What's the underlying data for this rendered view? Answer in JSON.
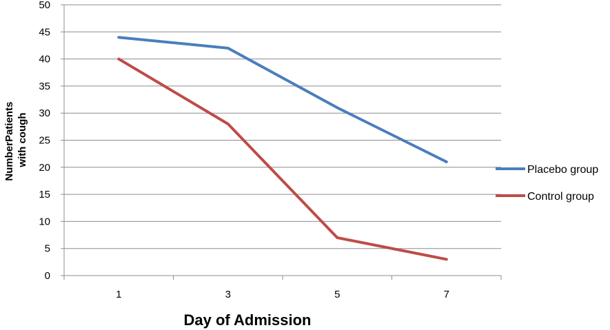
{
  "chart_data": {
    "type": "line",
    "x": [
      1,
      3,
      5,
      7
    ],
    "categories": [
      "1",
      "3",
      "5",
      "7"
    ],
    "series": [
      {
        "name": "Placebo group",
        "values": [
          44,
          42,
          31,
          21
        ],
        "color": "#4a7ebb"
      },
      {
        "name": "Control group",
        "values": [
          40,
          28,
          7,
          3
        ],
        "color": "#be4b48"
      }
    ],
    "xlabel": "Day of Admission",
    "ylabel_lines": [
      "NumberPatients",
      "with cough"
    ],
    "ylim": [
      0,
      50
    ],
    "yticks": [
      0,
      5,
      10,
      15,
      20,
      25,
      30,
      35,
      40,
      45,
      50
    ],
    "grid": true,
    "legend": "right"
  }
}
